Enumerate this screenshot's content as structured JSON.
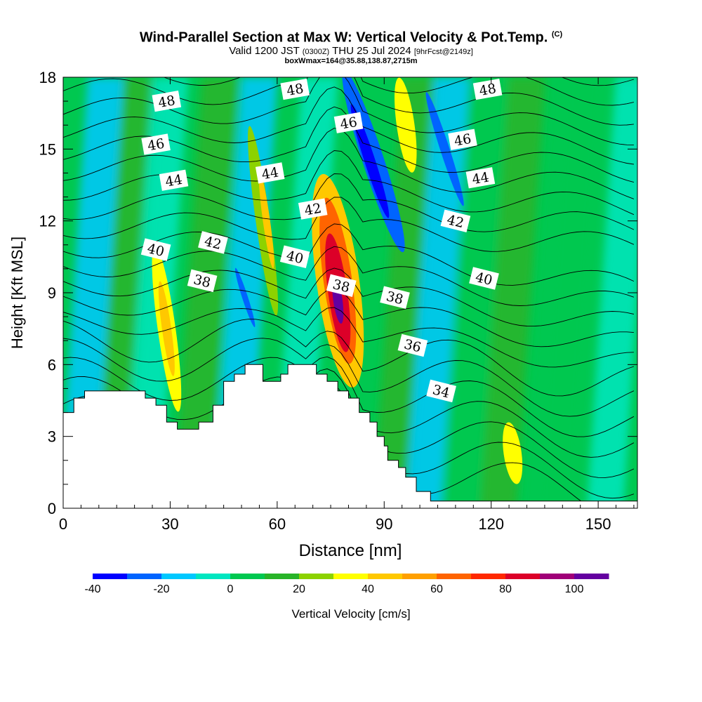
{
  "header": {
    "title": "Wind-Parallel Section at Max W: Vertical Velocity & Pot.Temp.",
    "title_mark": "(C)",
    "valid_prefix": "Valid 1200 JST",
    "valid_utc": "(0300Z)",
    "valid_date": "THU 25 Jul 2024",
    "forecast_info": "[9hrFcst@2149z]",
    "box_info": "boxWmax=164@35.88,138.87,2715m"
  },
  "chart_data": {
    "type": "heatmap",
    "description_field": "vertical velocity (filled) with potential temperature contours",
    "xlabel": "Distance [nm]",
    "ylabel": "Height [Kft MSL]",
    "xlim": [
      0,
      161
    ],
    "ylim": [
      0,
      18
    ],
    "x_ticks": [
      0,
      30,
      60,
      90,
      120,
      150
    ],
    "y_ticks": [
      0,
      3,
      6,
      9,
      12,
      15,
      18
    ],
    "colorbar": {
      "label": "Vertical Velocity [cm/s]",
      "ticks": [
        -40,
        -20,
        0,
        20,
        40,
        60,
        80,
        100
      ],
      "range": [
        -40,
        110
      ],
      "step": 10,
      "colors": [
        "#0000ff",
        "#0064ff",
        "#00c8ff",
        "#00e6c0",
        "#00c850",
        "#28b428",
        "#8cd200",
        "#ffff00",
        "#ffc800",
        "#ffa000",
        "#ff6400",
        "#ff2800",
        "#dc0028",
        "#a00078",
        "#6400a0"
      ]
    },
    "contour_labels": [
      {
        "text": "48",
        "x": 29,
        "y": 17.0
      },
      {
        "text": "48",
        "x": 65,
        "y": 17.5
      },
      {
        "text": "48",
        "x": 119,
        "y": 17.5
      },
      {
        "text": "46",
        "x": 26,
        "y": 15.2
      },
      {
        "text": "46",
        "x": 80,
        "y": 16.1
      },
      {
        "text": "46",
        "x": 112,
        "y": 15.4
      },
      {
        "text": "44",
        "x": 31,
        "y": 13.7
      },
      {
        "text": "44",
        "x": 58,
        "y": 14.0
      },
      {
        "text": "44",
        "x": 117,
        "y": 13.8
      },
      {
        "text": "42",
        "x": 70,
        "y": 12.5
      },
      {
        "text": "42",
        "x": 42,
        "y": 11.1
      },
      {
        "text": "42",
        "x": 110,
        "y": 12.0
      },
      {
        "text": "40",
        "x": 26,
        "y": 10.8
      },
      {
        "text": "40",
        "x": 65,
        "y": 10.5
      },
      {
        "text": "40",
        "x": 118,
        "y": 9.6
      },
      {
        "text": "38",
        "x": 39,
        "y": 9.5
      },
      {
        "text": "38",
        "x": 78,
        "y": 9.3
      },
      {
        "text": "38",
        "x": 93,
        "y": 8.8
      },
      {
        "text": "36",
        "x": 98,
        "y": 6.8
      },
      {
        "text": "34",
        "x": 106,
        "y": 4.9
      }
    ],
    "terrain_top_kft": [
      [
        0,
        4.0
      ],
      [
        3,
        4.0
      ],
      [
        3,
        4.6
      ],
      [
        6,
        4.6
      ],
      [
        6,
        4.9
      ],
      [
        23,
        4.9
      ],
      [
        23,
        4.6
      ],
      [
        26,
        4.6
      ],
      [
        26,
        4.3
      ],
      [
        29,
        4.3
      ],
      [
        29,
        3.6
      ],
      [
        32,
        3.6
      ],
      [
        32,
        3.3
      ],
      [
        38,
        3.3
      ],
      [
        38,
        3.6
      ],
      [
        42,
        3.6
      ],
      [
        42,
        4.3
      ],
      [
        45,
        4.3
      ],
      [
        45,
        5.3
      ],
      [
        48,
        5.3
      ],
      [
        48,
        5.6
      ],
      [
        51,
        5.6
      ],
      [
        51,
        6.0
      ],
      [
        56,
        6.0
      ],
      [
        56,
        5.3
      ],
      [
        61,
        5.3
      ],
      [
        61,
        5.6
      ],
      [
        63,
        5.6
      ],
      [
        63,
        6.0
      ],
      [
        71,
        6.0
      ],
      [
        71,
        5.6
      ],
      [
        74,
        5.6
      ],
      [
        74,
        5.3
      ],
      [
        77,
        5.3
      ],
      [
        77,
        4.9
      ],
      [
        80,
        4.9
      ],
      [
        80,
        4.6
      ],
      [
        83,
        4.6
      ],
      [
        83,
        4.0
      ],
      [
        86,
        4.0
      ],
      [
        86,
        3.6
      ],
      [
        88,
        3.6
      ],
      [
        88,
        3.0
      ],
      [
        90,
        3.0
      ],
      [
        90,
        2.6
      ],
      [
        91,
        2.6
      ],
      [
        91,
        2.0
      ],
      [
        94,
        2.0
      ],
      [
        94,
        1.7
      ],
      [
        96,
        1.7
      ],
      [
        96,
        1.3
      ],
      [
        99,
        1.3
      ],
      [
        99,
        0.7
      ],
      [
        103,
        0.7
      ],
      [
        103,
        0.3
      ],
      [
        161,
        0.3
      ]
    ],
    "velocity_features": [
      {
        "x": 29,
        "y": 7.5,
        "rx": 2.5,
        "ry": 3.5,
        "value": 30
      },
      {
        "x": 29,
        "y": 7.5,
        "rx": 1.3,
        "ry": 2.0,
        "value": 45
      },
      {
        "x": 56,
        "y": 12.0,
        "rx": 2.0,
        "ry": 4.0,
        "value": 25
      },
      {
        "x": 57,
        "y": 12.0,
        "rx": 1.0,
        "ry": 2.0,
        "value": 40
      },
      {
        "x": 77,
        "y": 9.5,
        "rx": 6.0,
        "ry": 4.5,
        "value": 40
      },
      {
        "x": 77,
        "y": 9.5,
        "rx": 4.0,
        "ry": 3.5,
        "value": 60
      },
      {
        "x": 77,
        "y": 9.0,
        "rx": 2.7,
        "ry": 2.5,
        "value": 80
      },
      {
        "x": 77,
        "y": 8.7,
        "rx": 1.3,
        "ry": 1.0,
        "value": 100
      },
      {
        "x": 87,
        "y": 14.5,
        "rx": 3.0,
        "ry": 4.0,
        "value": -30
      },
      {
        "x": 86,
        "y": 14.5,
        "rx": 1.5,
        "ry": 2.5,
        "value": -40
      },
      {
        "x": 96,
        "y": 16.0,
        "rx": 2.5,
        "ry": 2.0,
        "value": 35
      },
      {
        "x": 107,
        "y": 15.0,
        "rx": 1.3,
        "ry": 2.5,
        "value": -25
      },
      {
        "x": 51,
        "y": 8.8,
        "rx": 0.8,
        "ry": 1.3,
        "value": -25
      },
      {
        "x": 126,
        "y": 2.3,
        "rx": 2.5,
        "ry": 1.3,
        "value": 30
      }
    ]
  }
}
